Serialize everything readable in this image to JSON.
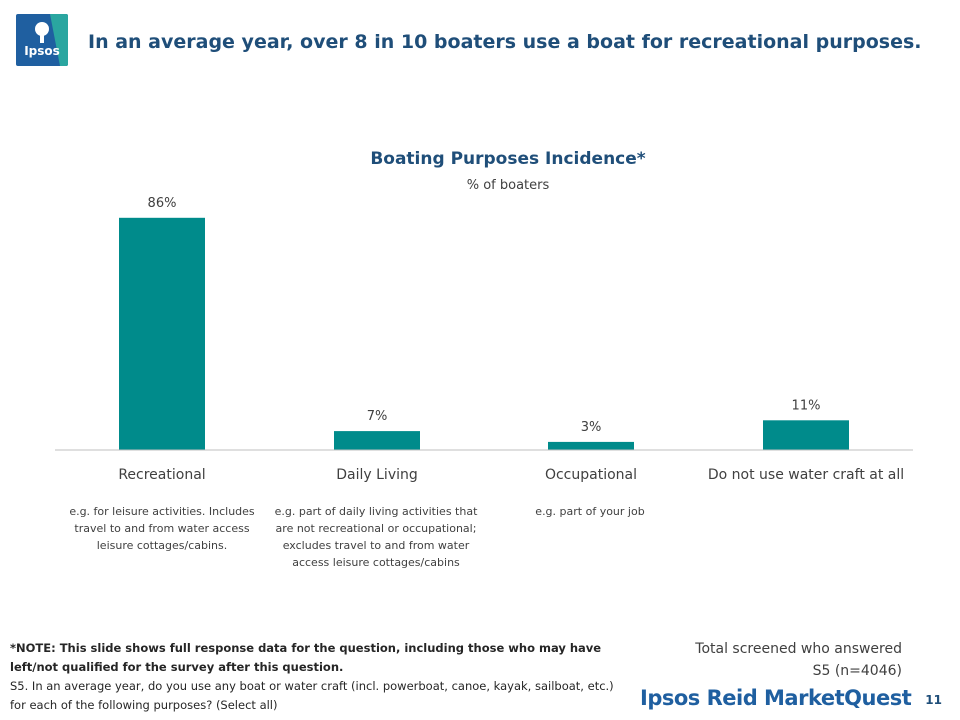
{
  "header": {
    "logo_text": "Ipsos",
    "title": "In an average year, over 8 in 10 boaters use a boat for recreational purposes."
  },
  "chart_data": {
    "type": "bar",
    "title": "Boating Purposes Incidence*",
    "subtitle": "% of boaters",
    "categories": [
      "Recreational",
      "Daily Living",
      "Occupational",
      "Do not use water craft at all"
    ],
    "values": [
      86,
      7,
      3,
      11
    ],
    "data_labels": [
      "86%",
      "7%",
      "3%",
      "11%"
    ],
    "ylim": [
      0,
      100
    ],
    "grid": false,
    "bar_color": "#008b8b"
  },
  "category_notes": [
    "e.g. for leisure activities.  Includes travel to and from water access leisure cottages/cabins.",
    "e.g. part of daily living activities that are not recreational or occupational; excludes travel to and from water access leisure cottages/cabins",
    "e.g. part of your job",
    ""
  ],
  "footnote": {
    "note": "*NOTE: This slide shows full response data for the question, including those who may have left/not qualified for the survey after this question.",
    "question": "S5. In an average year, do you use any boat or water craft (incl. powerboat, canoe, kayak, sailboat, etc.) for each of the following purposes? (Select all)"
  },
  "sample": {
    "line1": "Total screened who answered",
    "line2": "S5 (n=4046)"
  },
  "brand": "Ipsos Reid MarketQuest",
  "page_number": "11"
}
